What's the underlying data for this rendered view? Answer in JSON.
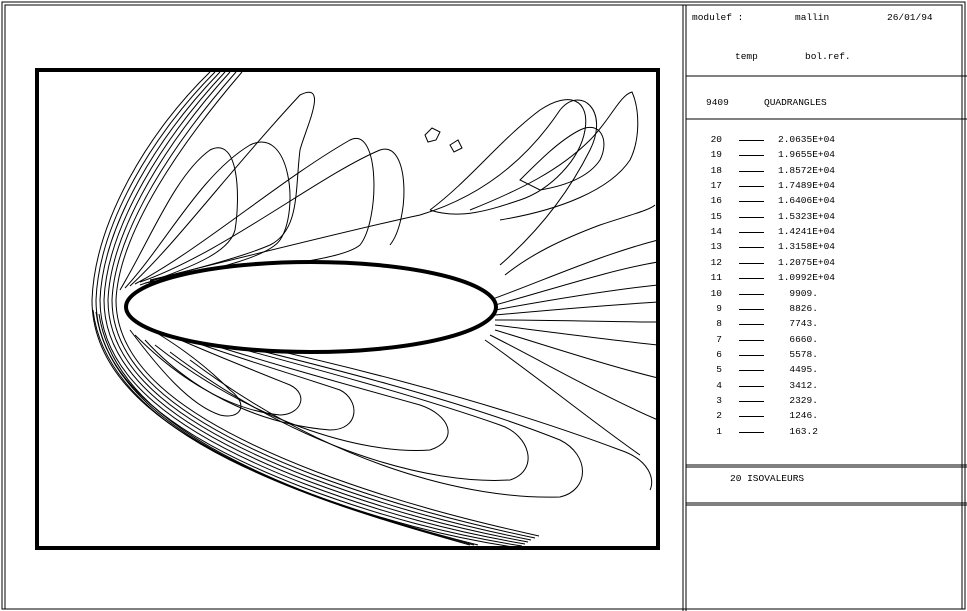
{
  "header": {
    "program": "modulef :",
    "user": "mallin",
    "date": "26/01/94",
    "field": "temp",
    "case": "bol.ref."
  },
  "mesh": {
    "count": "9409",
    "element_type": "QUADRANGLES"
  },
  "legend": {
    "items": [
      {
        "index": "20",
        "value": "2.0635E+04"
      },
      {
        "index": "19",
        "value": "1.9655E+04"
      },
      {
        "index": "18",
        "value": "1.8572E+04"
      },
      {
        "index": "17",
        "value": "1.7489E+04"
      },
      {
        "index": "16",
        "value": "1.6406E+04"
      },
      {
        "index": "15",
        "value": "1.5323E+04"
      },
      {
        "index": "14",
        "value": "1.4241E+04"
      },
      {
        "index": "13",
        "value": "1.3158E+04"
      },
      {
        "index": "12",
        "value": "1.2075E+04"
      },
      {
        "index": "11",
        "value": "1.0992E+04"
      },
      {
        "index": "10",
        "value": "  9909."
      },
      {
        "index": "9",
        "value": "  8826."
      },
      {
        "index": "8",
        "value": "  7743."
      },
      {
        "index": "7",
        "value": "  6660."
      },
      {
        "index": "6",
        "value": "  5578."
      },
      {
        "index": "5",
        "value": "  4495."
      },
      {
        "index": "4",
        "value": "  3412."
      },
      {
        "index": "3",
        "value": "  2329."
      },
      {
        "index": "2",
        "value": "  1246."
      },
      {
        "index": "1",
        "value": "  163.2"
      }
    ]
  },
  "isovalues_label": "20 ISOVALEURS"
}
